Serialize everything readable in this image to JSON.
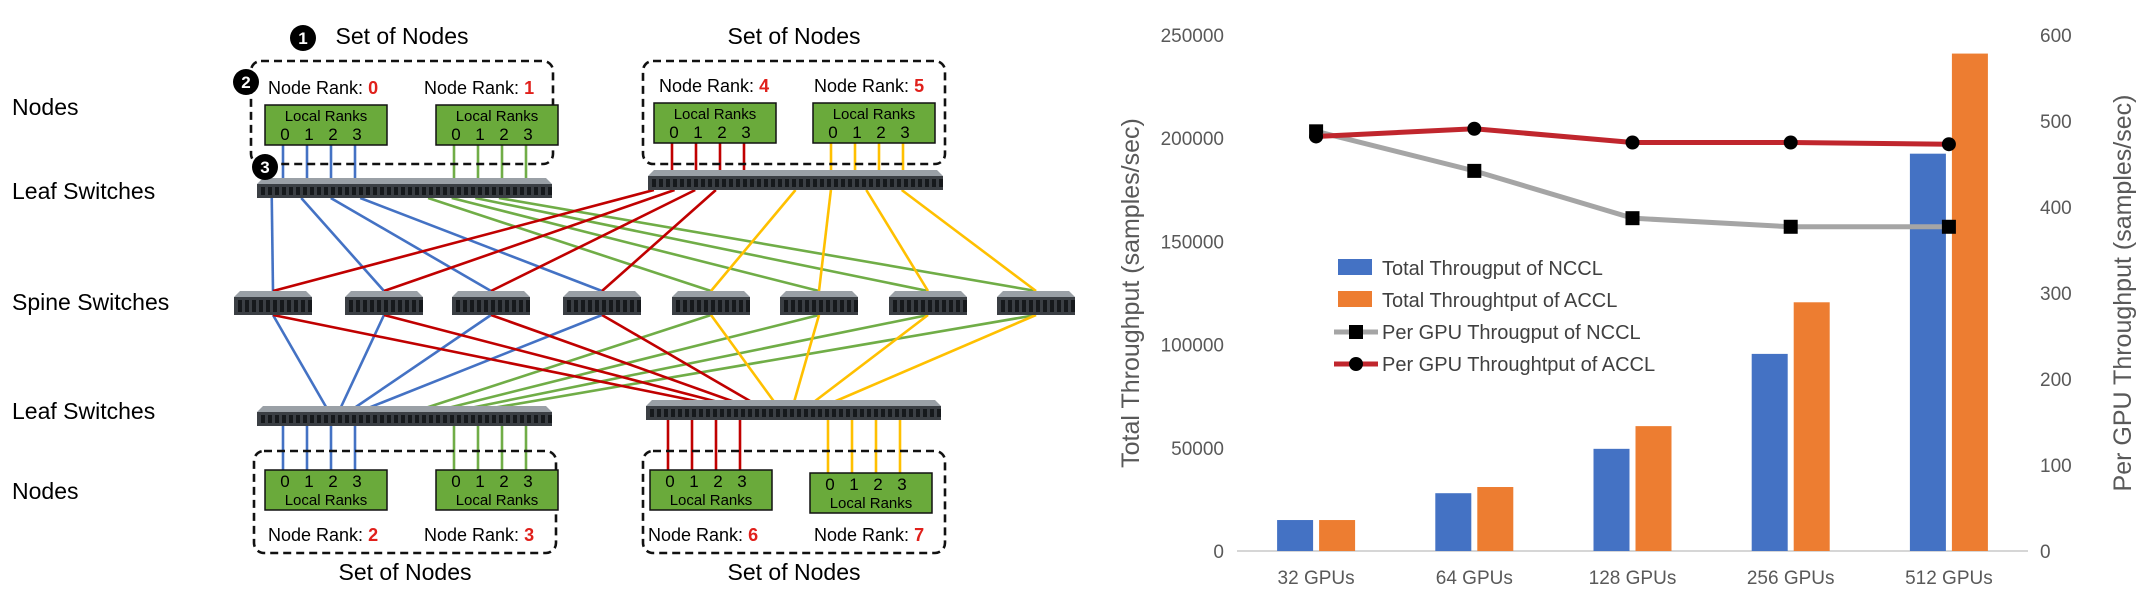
{
  "diagram": {
    "row_labels": [
      "Nodes",
      "Leaf Switches",
      "Spine Switches",
      "Leaf Switches",
      "Nodes"
    ],
    "markers": [
      "1",
      "2",
      "3"
    ],
    "set_label": "Set of Nodes",
    "node_rank_label": "Node Rank: ",
    "local_ranks_label": "Local Ranks",
    "local_rank_digits": [
      "0",
      "1",
      "2",
      "3"
    ],
    "nodes": [
      {
        "rank": "0",
        "color": "#4472c4"
      },
      {
        "rank": "1",
        "color": "#70ad47"
      },
      {
        "rank": "4",
        "color": "#c00000"
      },
      {
        "rank": "5",
        "color": "#ffc000"
      },
      {
        "rank": "2",
        "color": "#4472c4"
      },
      {
        "rank": "3",
        "color": "#70ad47"
      },
      {
        "rank": "6",
        "color": "#c00000"
      },
      {
        "rank": "7",
        "color": "#ffc000"
      }
    ],
    "colors": {
      "node_box": "#6aaa3b",
      "rank_number": "#e0201b"
    }
  },
  "chart_data": {
    "type": "bar",
    "categories": [
      "32 GPUs",
      "64 GPUs",
      "128 GPUs",
      "256 GPUs",
      "512 GPUs"
    ],
    "series": [
      {
        "name": "Total Througput of NCCL",
        "type": "bar",
        "axis": "left",
        "color": "#4472c4",
        "values": [
          15000,
          28000,
          49500,
          95500,
          192500
        ]
      },
      {
        "name": "Total Throughtput of ACCL",
        "type": "bar",
        "axis": "left",
        "color": "#ed7d31",
        "values": [
          15000,
          31000,
          60500,
          120500,
          241000
        ]
      },
      {
        "name": "Per GPU Througput of NCCL",
        "type": "line",
        "axis": "right",
        "color": "#a5a5a5",
        "marker": "square",
        "values": [
          488,
          442,
          387,
          377,
          377
        ]
      },
      {
        "name": "Per GPU Throughtput of ACCL",
        "type": "line",
        "axis": "right",
        "color": "#c0262d",
        "marker": "circle",
        "values": [
          482,
          491,
          475,
          475,
          473
        ]
      }
    ],
    "ylabel": "Total Throughput (samples/sec)",
    "y2label": "Per GPU Throughput (samples/sec)",
    "ylim": [
      0,
      250000
    ],
    "yticks": [
      "0",
      "50000",
      "100000",
      "150000",
      "200000",
      "250000"
    ],
    "y2lim": [
      0,
      600
    ],
    "y2ticks": [
      "0",
      "100",
      "200",
      "300",
      "400",
      "500",
      "600"
    ],
    "grid": false,
    "legend_position": "center-left"
  }
}
